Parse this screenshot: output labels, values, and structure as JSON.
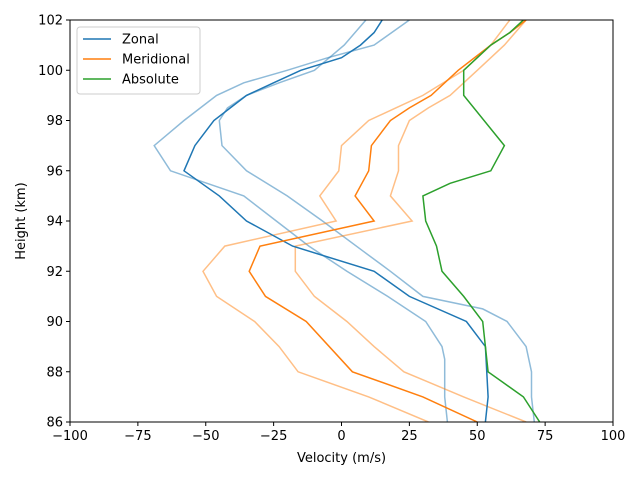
{
  "chart_data": {
    "type": "line",
    "xlabel": "Velocity (m/s)",
    "ylabel": "Height (km)",
    "xlim": [
      -100,
      100
    ],
    "ylim": [
      86,
      102
    ],
    "xticks": [
      -100,
      -75,
      -50,
      -25,
      0,
      25,
      50,
      75,
      100
    ],
    "yticks": [
      86,
      88,
      90,
      92,
      94,
      96,
      98,
      100,
      102
    ],
    "legend_position": "upper-left",
    "series": [
      {
        "name": "Zonal",
        "color": "#1f77b4",
        "x": [
          53,
          54,
          53,
          46,
          25,
          12,
          -18,
          -35,
          -45,
          -58,
          -54,
          -47,
          -35,
          -25,
          -15,
          0,
          7,
          12,
          15
        ],
        "y": [
          86,
          87,
          89,
          90,
          91,
          92,
          93,
          94,
          95,
          96,
          97,
          98,
          99,
          99.5,
          100,
          100.5,
          101,
          101.5,
          102
        ]
      },
      {
        "name": "Meridional",
        "color": "#ff7f0e",
        "x": [
          50,
          30,
          4,
          -13,
          -28,
          -34,
          -30,
          12,
          5,
          10,
          11,
          18,
          25,
          33,
          43,
          55,
          62,
          68
        ],
        "y": [
          86,
          87,
          88,
          90,
          91,
          92,
          93,
          94,
          95,
          96,
          97,
          98,
          98.5,
          99,
          100,
          101,
          101.5,
          102
        ]
      },
      {
        "name": "Absolute",
        "color": "#2ca02c",
        "x": [
          73,
          67,
          54,
          53,
          52,
          45,
          37,
          35,
          31,
          30,
          40,
          55,
          60,
          45,
          45,
          55,
          62,
          67
        ],
        "y": [
          86,
          87,
          88,
          89,
          90,
          91,
          92,
          93,
          94,
          95,
          95.5,
          96,
          97,
          99,
          100,
          101,
          101.5,
          102
        ]
      }
    ],
    "bands": [
      {
        "series": "Zonal",
        "color": "#1f77b4",
        "upper_x": [
          39,
          38,
          38,
          38,
          37,
          31,
          17,
          2,
          -12,
          -24,
          -36,
          -63,
          -69,
          -58,
          -46,
          -36,
          -20,
          -5,
          12,
          25
        ],
        "upper_y": [
          86,
          87,
          88,
          88.5,
          89,
          90,
          91,
          92,
          93,
          94,
          95,
          96,
          97,
          98,
          99,
          99.5,
          100,
          100.5,
          101,
          102
        ],
        "lower_x": [
          71,
          70,
          70,
          68,
          61,
          52,
          30,
          18,
          8,
          -7,
          -20,
          -35,
          -44,
          -45,
          -42,
          -35,
          -23,
          -10,
          1,
          9
        ],
        "lower_y": [
          86,
          87,
          88,
          89,
          90,
          90.5,
          91,
          92,
          92.8,
          94,
          95,
          96,
          97,
          98,
          98.5,
          99,
          99.5,
          100,
          101,
          102
        ]
      },
      {
        "series": "Meridional",
        "color": "#ff7f0e",
        "upper_x": [
          68,
          45,
          23,
          12,
          2,
          -10,
          -17,
          -17,
          26,
          18,
          21,
          21,
          25,
          32,
          40,
          50,
          60,
          68
        ],
        "upper_y": [
          86,
          87,
          88,
          89,
          90,
          91,
          92,
          93,
          94,
          95,
          96,
          97,
          98,
          98.5,
          99,
          100,
          101,
          102
        ],
        "lower_x": [
          32,
          10,
          -16,
          -23,
          -32,
          -46,
          -51,
          -43,
          -2,
          -8,
          -1,
          0,
          10,
          20,
          30,
          45,
          55,
          62
        ],
        "lower_y": [
          86,
          87,
          88,
          89,
          90,
          91,
          92,
          93,
          94,
          95,
          96,
          97,
          98,
          98.5,
          99,
          100,
          101,
          102
        ]
      }
    ]
  }
}
